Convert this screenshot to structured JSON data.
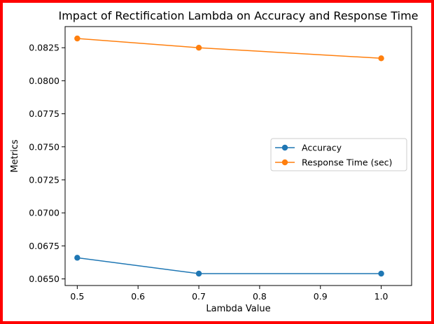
{
  "chart_data": {
    "type": "line",
    "title": "Impact of Rectification Lambda on Accuracy and Response Time",
    "xlabel": "Lambda Value",
    "ylabel": "Metrics",
    "x": [
      0.5,
      0.7,
      1.0
    ],
    "xlim": [
      0.48,
      1.05
    ],
    "ylim": [
      0.0645,
      0.0841
    ],
    "xticks": [
      "0.5",
      "0.6",
      "0.7",
      "0.8",
      "0.9",
      "1.0"
    ],
    "xtick_values": [
      0.5,
      0.6,
      0.7,
      0.8,
      0.9,
      1.0
    ],
    "yticks": [
      "0.0650",
      "0.0675",
      "0.0700",
      "0.0725",
      "0.0750",
      "0.0775",
      "0.0800",
      "0.0825"
    ],
    "ytick_values": [
      0.065,
      0.0675,
      0.07,
      0.0725,
      0.075,
      0.0775,
      0.08,
      0.0825
    ],
    "grid": false,
    "legend_position": "center-right",
    "series": [
      {
        "name": "Accuracy",
        "color": "#1f77b4",
        "marker": "circle",
        "values": [
          0.0666,
          0.0654,
          0.0654
        ]
      },
      {
        "name": "Response Time (sec)",
        "color": "#ff7f0e",
        "marker": "circle",
        "values": [
          0.0832,
          0.0825,
          0.0817
        ]
      }
    ]
  }
}
